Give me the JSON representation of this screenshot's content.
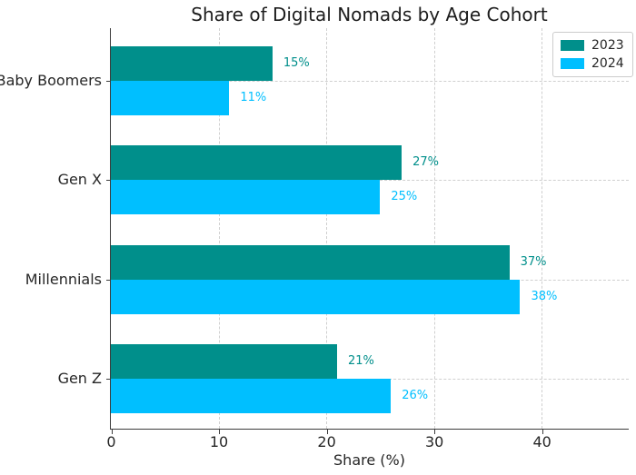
{
  "title": "Share of Digital Nomads by Age Cohort",
  "chart_data": {
    "type": "bar",
    "orientation": "horizontal",
    "title": "Share of Digital Nomads by Age Cohort",
    "categories": [
      "Baby Boomers",
      "Gen X",
      "Millennials",
      "Gen Z"
    ],
    "series": [
      {
        "name": "2023",
        "color": "#008f8b",
        "values": [
          15,
          27,
          37,
          21
        ]
      },
      {
        "name": "2024",
        "color": "#00bfff",
        "values": [
          11,
          25,
          38,
          26
        ]
      }
    ],
    "value_suffix": "%",
    "xlabel": "Share (%)",
    "xticks": [
      0,
      10,
      20,
      30,
      40
    ],
    "xlim": [
      0,
      48
    ],
    "grid": true,
    "grid_style": "dashed",
    "legend_position": "upper right",
    "legend_labels": [
      "2023",
      "2024"
    ]
  }
}
